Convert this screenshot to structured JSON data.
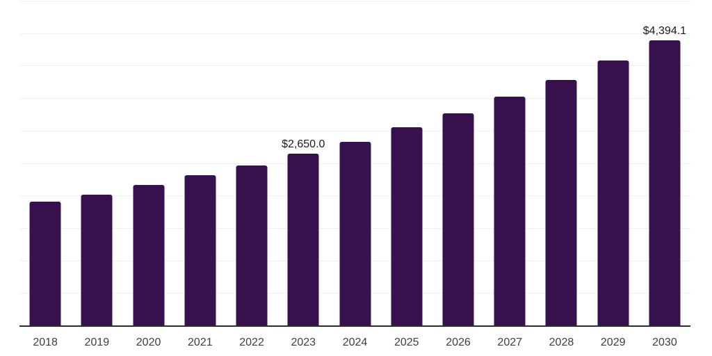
{
  "chart_data": {
    "type": "bar",
    "title": "",
    "xlabel": "",
    "ylabel": "",
    "categories": [
      "2018",
      "2019",
      "2020",
      "2021",
      "2022",
      "2023",
      "2024",
      "2025",
      "2026",
      "2027",
      "2028",
      "2029",
      "2030"
    ],
    "values": [
      1905,
      2013,
      2162,
      2312,
      2462,
      2650.0,
      2826,
      3051,
      3265,
      3522,
      3780,
      4079,
      4394.1
    ],
    "data_labels": {
      "2023": "$2,650.0",
      "2030": "$4,394.1"
    },
    "ylim": [
      0,
      5000
    ],
    "gridline_step": 500,
    "grid": "horizontal-only",
    "legend": "none",
    "colors": {
      "bar": "#36114E",
      "gridline": "#f0f0f0",
      "axis_line": "#2b2b2b",
      "tick_label": "#3d3d3d",
      "data_label": "#1a1a1a",
      "background": "#ffffff"
    }
  }
}
